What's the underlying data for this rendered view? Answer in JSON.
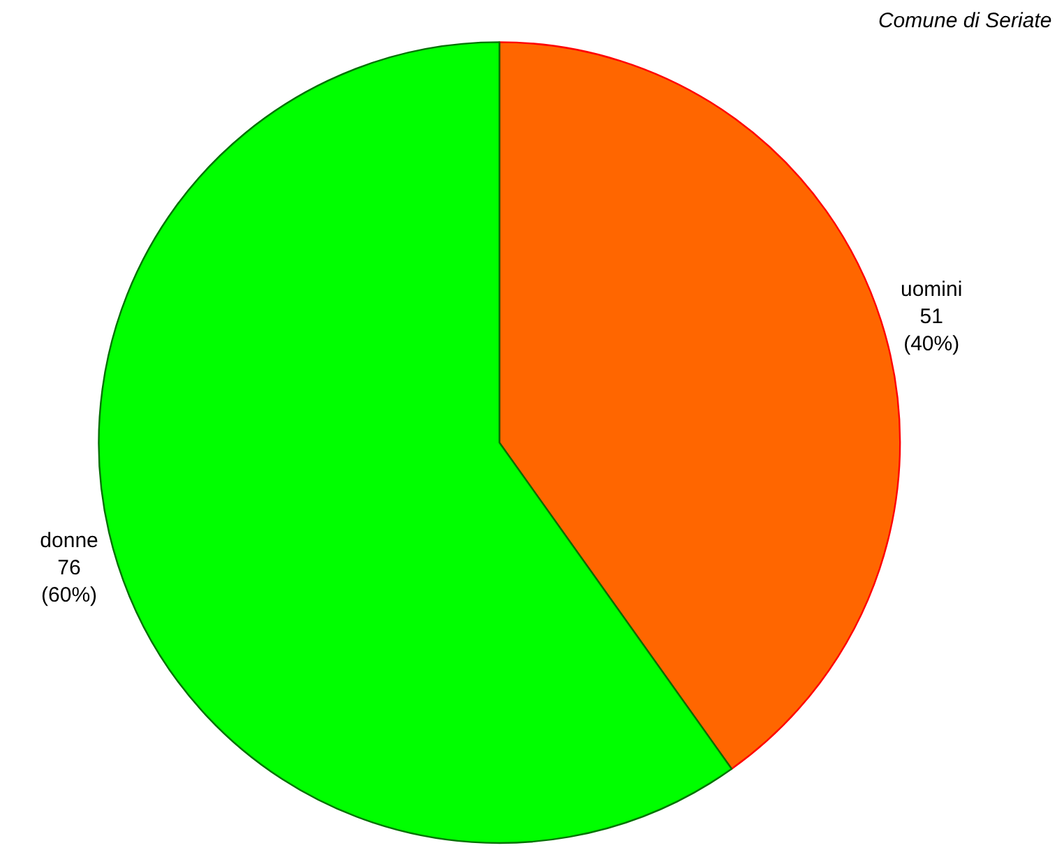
{
  "chart_data": {
    "type": "pie",
    "title": "Comune di Seriate",
    "categories": [
      "uomini",
      "donne"
    ],
    "values": [
      51,
      76
    ],
    "colors": [
      "#ff6600",
      "#00ff00"
    ],
    "value_labels": [
      "51\n(40%)",
      "76\n(60%)"
    ],
    "legend": false
  }
}
